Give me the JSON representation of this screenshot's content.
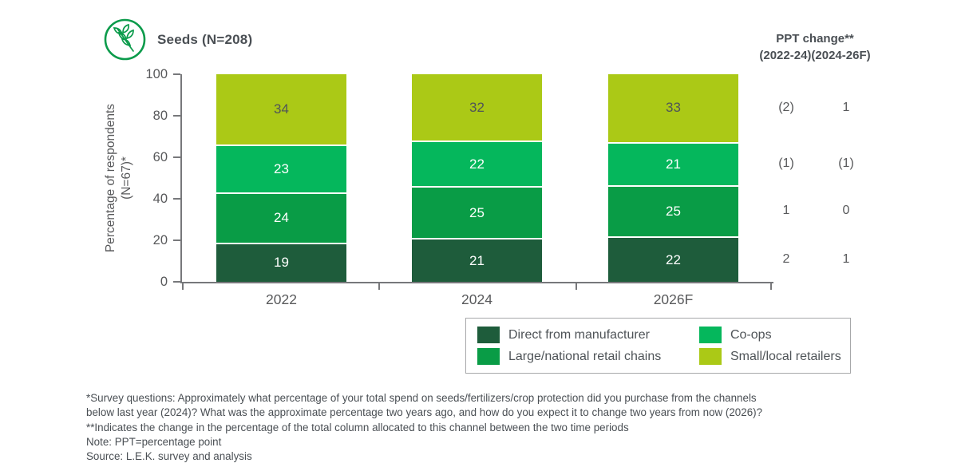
{
  "header": {
    "title": "Seeds (N=208)",
    "icon": "seeds-branch-icon"
  },
  "ppt_header": {
    "line1": "PPT change**",
    "line2": "(2022-24)(2024-26F)"
  },
  "chart_data": {
    "type": "bar",
    "stacked": true,
    "title": "Seeds (N=208)",
    "categories": [
      "2022",
      "2024",
      "2026F"
    ],
    "series": [
      {
        "name": "Direct from manufacturer",
        "color": "#1E5C3B",
        "label_color": "#FFFFFF",
        "values": [
          19,
          21,
          22
        ]
      },
      {
        "name": "Large/national retail chains",
        "color": "#099C46",
        "label_color": "#FFFFFF",
        "values": [
          24,
          25,
          25
        ]
      },
      {
        "name": "Co-ops",
        "color": "#05B75C",
        "label_color": "#FFFFFF",
        "values": [
          23,
          22,
          21
        ]
      },
      {
        "name": "Small/local retailers",
        "color": "#ABC916",
        "label_color": "#4F5458",
        "values": [
          34,
          32,
          33
        ]
      }
    ],
    "ylabel_lines": [
      "Percentage of respondents",
      "(N=67)*"
    ],
    "ylim": [
      0,
      100
    ],
    "yticks": [
      0,
      20,
      40,
      60,
      80,
      100
    ],
    "grid": false,
    "legend_position": "bottom-right",
    "ppt_change": {
      "header_lines": [
        "PPT change**",
        "(2022-24)(2024-26F)"
      ],
      "columns": [
        "2022-24",
        "2024-26F"
      ],
      "rows_top_to_bottom": [
        {
          "series": "Small/local retailers",
          "values": [
            "(2)",
            "1"
          ]
        },
        {
          "series": "Co-ops",
          "values": [
            "(1)",
            "(1)"
          ]
        },
        {
          "series": "Large/national retail chains",
          "values": [
            "1",
            "0"
          ]
        },
        {
          "series": "Direct from manufacturer",
          "values": [
            "2",
            "1"
          ]
        }
      ]
    }
  },
  "legend": {
    "items": [
      {
        "label": "Direct from manufacturer",
        "color": "#1E5C3B"
      },
      {
        "label": "Co-ops",
        "color": "#05B75C"
      },
      {
        "label": "Large/national retail chains",
        "color": "#099C46"
      },
      {
        "label": "Small/local retailers",
        "color": "#ABC916"
      }
    ]
  },
  "footnotes": [
    "*Survey questions: Approximately what percentage of your total spend on seeds/fertilizers/crop protection did you purchase from the channels",
    "below last year (2024)? What was the approximate percentage two years ago, and how do you expect it to change two years from now (2026)?",
    "**Indicates the change in the percentage of the total column allocated to this channel between the two time periods",
    "Note: PPT=percentage point",
    "Source: L.E.K. survey and analysis"
  ]
}
